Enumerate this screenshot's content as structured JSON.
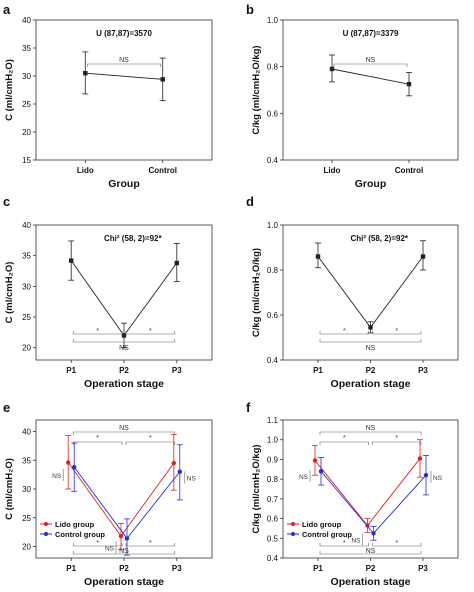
{
  "chart_data": [
    {
      "panel": "a",
      "type": "scatter",
      "categories": [
        "Lido",
        "Control"
      ],
      "series": [
        {
          "name": "",
          "color": "#222222",
          "values": [
            30.5,
            29.4
          ],
          "err_low": [
            26.8,
            25.6
          ],
          "err_high": [
            34.3,
            33.2
          ]
        }
      ],
      "ylim": [
        15,
        40
      ],
      "yticks": [
        15,
        20,
        25,
        30,
        35,
        40
      ],
      "xlabel": "Group",
      "ylabel": "C (ml/cmH₂O)",
      "annotation": "U (87,87)=3570",
      "brackets": [
        {
          "from": 0,
          "to": 1,
          "label": "NS"
        }
      ]
    },
    {
      "panel": "b",
      "type": "scatter",
      "categories": [
        "Lido",
        "Control"
      ],
      "series": [
        {
          "name": "",
          "color": "#222222",
          "values": [
            0.79,
            0.725
          ],
          "err_low": [
            0.735,
            0.675
          ],
          "err_high": [
            0.85,
            0.775
          ]
        }
      ],
      "ylim": [
        0.4,
        1.0
      ],
      "yticks": [
        "0.4",
        "0.6",
        "0.8",
        "1.0"
      ],
      "xlabel": "Group",
      "ylabel": "C/kg (ml/cmH₂O/kg)",
      "annotation": "U (87,87)=3379",
      "brackets": [
        {
          "from": 0,
          "to": 1,
          "label": "NS"
        }
      ]
    },
    {
      "panel": "c",
      "type": "line",
      "categories": [
        "P1",
        "P2",
        "P3"
      ],
      "series": [
        {
          "name": "",
          "color": "#222222",
          "values": [
            34.2,
            22.0,
            33.8
          ],
          "err_low": [
            31.0,
            20.0,
            30.8
          ],
          "err_high": [
            37.4,
            24.0,
            37.0
          ]
        }
      ],
      "ylim": [
        18,
        40
      ],
      "yticks": [
        20,
        25,
        30,
        35,
        40
      ],
      "xlabel": "Operation stage",
      "ylabel": "C (ml/cmH₂O)",
      "annotation": "Chi² (58, 2)=92*",
      "brackets": [
        {
          "from": 0,
          "to": 1,
          "label": "*",
          "level": 1
        },
        {
          "from": 1,
          "to": 2,
          "label": "*",
          "level": 1
        },
        {
          "from": 0,
          "to": 2,
          "label": "NS",
          "level": 0
        }
      ]
    },
    {
      "panel": "d",
      "type": "line",
      "categories": [
        "P1",
        "P2",
        "P3"
      ],
      "series": [
        {
          "name": "",
          "color": "#222222",
          "values": [
            0.86,
            0.545,
            0.86
          ],
          "err_low": [
            0.81,
            0.52,
            0.8
          ],
          "err_high": [
            0.92,
            0.57,
            0.93
          ]
        }
      ],
      "ylim": [
        0.4,
        1.0
      ],
      "yticks": [
        "0.4",
        "0.6",
        "0.8",
        "1.0"
      ],
      "xlabel": "Operation stage",
      "ylabel": "C/kg (ml/cmH₂O/kg)",
      "annotation": "Chi² (58, 2)=92*",
      "brackets": [
        {
          "from": 0,
          "to": 1,
          "label": "*",
          "level": 1
        },
        {
          "from": 1,
          "to": 2,
          "label": "*",
          "level": 1
        },
        {
          "from": 0,
          "to": 2,
          "label": "NS",
          "level": 0
        }
      ]
    },
    {
      "panel": "e",
      "type": "line",
      "categories": [
        "P1",
        "P2",
        "P3"
      ],
      "series": [
        {
          "name": "Lido group",
          "color": "#e02020",
          "values": [
            34.6,
            21.8,
            34.5
          ],
          "err_low": [
            30.0,
            19.5,
            29.8
          ],
          "err_high": [
            39.3,
            24.0,
            39.5
          ]
        },
        {
          "name": "Control group",
          "color": "#1f2ee0",
          "values": [
            33.8,
            21.4,
            33.0
          ],
          "err_low": [
            29.6,
            18.5,
            28.1
          ],
          "err_high": [
            38.0,
            24.8,
            37.7
          ]
        }
      ],
      "ylim": [
        18,
        42
      ],
      "yticks": [
        20,
        25,
        30,
        35,
        40
      ],
      "xlabel": "Operation stage",
      "ylabel": "C (ml/cmH₂O)",
      "legend": "lower-left",
      "brackets_top": [
        {
          "from": 0,
          "to": 2,
          "label": "NS",
          "level": 1
        },
        {
          "from": 0,
          "to": 1,
          "label": "*",
          "level": 0
        },
        {
          "from": 1,
          "to": 2,
          "label": "*",
          "level": 0
        }
      ],
      "brackets_bottom": [
        {
          "from": 0,
          "to": 1,
          "label": "*",
          "level": 0
        },
        {
          "from": 1,
          "to": 2,
          "label": "*",
          "level": 0
        },
        {
          "from": 0,
          "to": 2,
          "label": "NS",
          "level": 1
        }
      ],
      "pair_ns": [
        "NS",
        "NS",
        "NS"
      ]
    },
    {
      "panel": "f",
      "type": "line",
      "categories": [
        "P1",
        "P2",
        "P3"
      ],
      "series": [
        {
          "name": "Lido group",
          "color": "#e02020",
          "values": [
            0.895,
            0.565,
            0.905
          ],
          "err_low": [
            0.82,
            0.53,
            0.81
          ],
          "err_high": [
            0.97,
            0.6,
            1.0
          ]
        },
        {
          "name": "Control group",
          "color": "#1f2ee0",
          "values": [
            0.84,
            0.525,
            0.82
          ],
          "err_low": [
            0.77,
            0.49,
            0.72
          ],
          "err_high": [
            0.91,
            0.56,
            0.92
          ]
        }
      ],
      "ylim": [
        0.4,
        1.1
      ],
      "yticks": [
        "0.4",
        "0.5",
        "0.6",
        "0.7",
        "0.8",
        "0.9",
        "1.0",
        "1.1"
      ],
      "xlabel": "Operation stage",
      "ylabel": "C/kg (ml/cmH₂O/kg)",
      "legend": "lower-left",
      "brackets_top": [
        {
          "from": 0,
          "to": 2,
          "label": "NS",
          "level": 1
        },
        {
          "from": 0,
          "to": 1,
          "label": "*",
          "level": 0
        },
        {
          "from": 1,
          "to": 2,
          "label": "*",
          "level": 0
        }
      ],
      "brackets_bottom": [
        {
          "from": 0,
          "to": 1,
          "label": "*",
          "level": 0
        },
        {
          "from": 1,
          "to": 2,
          "label": "*",
          "level": 0
        },
        {
          "from": 0,
          "to": 2,
          "label": "NS",
          "level": 1
        }
      ],
      "pair_ns": [
        "NS",
        "NS",
        "NS"
      ]
    }
  ]
}
